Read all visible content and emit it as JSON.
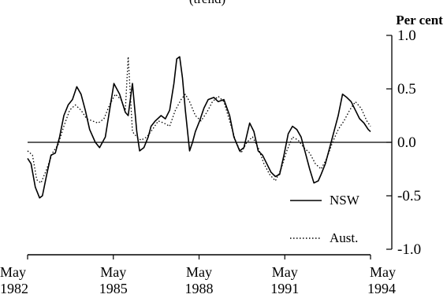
{
  "chart_data": {
    "type": "line",
    "title": "",
    "title_fragment": "(trend)",
    "unit_label": "Per cent",
    "xlabel": "",
    "ylabel": "Per cent",
    "xlim": [
      1982.33,
      1994.33
    ],
    "ylim": [
      -1.0,
      1.0
    ],
    "y_axis_side": "right",
    "grid": false,
    "zero_line": true,
    "legend_position": "bottom-right",
    "x_ticks": [
      {
        "x": 1982.33,
        "month": "May",
        "year": "1982"
      },
      {
        "x": 1985.33,
        "month": "May",
        "year": "1985"
      },
      {
        "x": 1988.33,
        "month": "May",
        "year": "1988"
      },
      {
        "x": 1991.33,
        "month": "May",
        "year": "1991"
      },
      {
        "x": 1994.33,
        "month": "May",
        "year": "1994"
      }
    ],
    "y_ticks": [
      {
        "value": 1.0,
        "label": "1.0"
      },
      {
        "value": 0.5,
        "label": "0.5"
      },
      {
        "value": 0.0,
        "label": "0.0"
      },
      {
        "value": -0.5,
        "label": "-0.5"
      },
      {
        "value": -1.0,
        "label": "-1.0"
      }
    ],
    "series": [
      {
        "name": "NSW",
        "style": "solid",
        "color": "#000000",
        "x": [
          1982.33,
          1982.45,
          1982.6,
          1982.75,
          1982.85,
          1983.0,
          1983.15,
          1983.3,
          1983.45,
          1983.6,
          1983.75,
          1983.9,
          1984.05,
          1984.2,
          1984.35,
          1984.5,
          1984.7,
          1984.85,
          1985.05,
          1985.2,
          1985.35,
          1985.55,
          1985.75,
          1985.85,
          1986.0,
          1986.15,
          1986.25,
          1986.4,
          1986.55,
          1986.65,
          1986.8,
          1987.0,
          1987.15,
          1987.3,
          1987.45,
          1987.55,
          1987.65,
          1987.75,
          1987.85,
          1988.0,
          1988.1,
          1988.2,
          1988.35,
          1988.5,
          1988.65,
          1988.85,
          1989.0,
          1989.2,
          1989.4,
          1989.55,
          1989.75,
          1989.9,
          1990.1,
          1990.25,
          1990.4,
          1990.55,
          1990.7,
          1990.85,
          1991.0,
          1991.15,
          1991.3,
          1991.45,
          1991.6,
          1991.75,
          1991.9,
          1992.05,
          1992.2,
          1992.35,
          1992.5,
          1992.6,
          1992.75,
          1992.9,
          1993.05,
          1993.2,
          1993.35,
          1993.5,
          1993.65,
          1993.8,
          1993.95,
          1994.1,
          1994.25,
          1994.33
        ],
        "y": [
          -0.15,
          -0.2,
          -0.42,
          -0.52,
          -0.5,
          -0.3,
          -0.12,
          -0.1,
          0.05,
          0.25,
          0.35,
          0.4,
          0.52,
          0.45,
          0.3,
          0.12,
          0.0,
          -0.05,
          0.05,
          0.3,
          0.55,
          0.45,
          0.28,
          0.25,
          0.55,
          0.1,
          -0.08,
          -0.05,
          0.05,
          0.15,
          0.2,
          0.25,
          0.22,
          0.3,
          0.55,
          0.78,
          0.8,
          0.6,
          0.3,
          -0.08,
          0.0,
          0.1,
          0.2,
          0.32,
          0.4,
          0.42,
          0.38,
          0.4,
          0.25,
          0.05,
          -0.08,
          -0.05,
          0.18,
          0.1,
          -0.08,
          -0.12,
          -0.2,
          -0.28,
          -0.32,
          -0.3,
          -0.12,
          0.08,
          0.15,
          0.12,
          0.05,
          -0.1,
          -0.25,
          -0.38,
          -0.36,
          -0.3,
          -0.2,
          -0.05,
          0.1,
          0.25,
          0.45,
          0.42,
          0.38,
          0.3,
          0.22,
          0.18,
          0.12,
          0.1
        ]
      },
      {
        "name": "Aust.",
        "style": "dotted",
        "color": "#000000",
        "x": [
          1982.33,
          1982.5,
          1982.65,
          1982.8,
          1983.0,
          1983.2,
          1983.4,
          1983.6,
          1983.8,
          1984.0,
          1984.2,
          1984.4,
          1984.6,
          1984.8,
          1985.0,
          1985.2,
          1985.4,
          1985.6,
          1985.75,
          1985.85,
          1986.0,
          1986.15,
          1986.3,
          1986.5,
          1986.7,
          1986.9,
          1987.1,
          1987.3,
          1987.5,
          1987.7,
          1987.85,
          1988.0,
          1988.2,
          1988.4,
          1988.6,
          1988.8,
          1989.0,
          1989.2,
          1989.4,
          1989.6,
          1989.8,
          1990.0,
          1990.2,
          1990.4,
          1990.6,
          1990.8,
          1991.0,
          1991.2,
          1991.4,
          1991.6,
          1991.8,
          1992.0,
          1992.2,
          1992.4,
          1992.6,
          1992.8,
          1993.0,
          1993.2,
          1993.4,
          1993.6,
          1993.8,
          1994.0,
          1994.2,
          1994.33
        ],
        "y": [
          -0.08,
          -0.12,
          -0.35,
          -0.38,
          -0.25,
          -0.1,
          -0.02,
          0.15,
          0.3,
          0.35,
          0.3,
          0.22,
          0.2,
          0.18,
          0.22,
          0.35,
          0.45,
          0.4,
          0.3,
          0.8,
          0.1,
          0.05,
          0.02,
          0.05,
          0.12,
          0.2,
          0.18,
          0.15,
          0.3,
          0.4,
          0.45,
          0.38,
          0.25,
          0.2,
          0.28,
          0.38,
          0.43,
          0.38,
          0.2,
          0.02,
          -0.1,
          0.0,
          0.05,
          -0.05,
          -0.2,
          -0.3,
          -0.36,
          -0.25,
          -0.08,
          0.05,
          0.02,
          -0.05,
          -0.1,
          -0.2,
          -0.25,
          -0.15,
          0.0,
          0.12,
          0.2,
          0.3,
          0.38,
          0.32,
          0.2,
          0.15
        ]
      }
    ]
  }
}
